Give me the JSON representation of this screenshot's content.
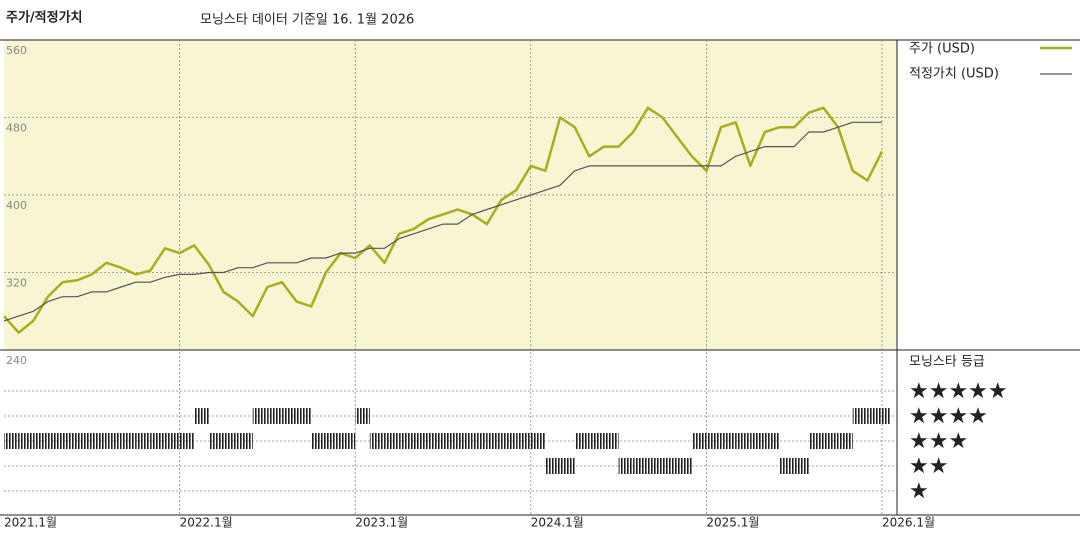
{
  "chart_data": {
    "type": "line",
    "title": "주가/적정가치",
    "subtitle": "모닝스타 데이터 기준일 16. 1월 2026",
    "x": [
      "2021-01",
      "2021-02",
      "2021-03",
      "2021-04",
      "2021-05",
      "2021-06",
      "2021-07",
      "2021-08",
      "2021-09",
      "2021-10",
      "2021-11",
      "2021-12",
      "2022-01",
      "2022-02",
      "2022-03",
      "2022-04",
      "2022-05",
      "2022-06",
      "2022-07",
      "2022-08",
      "2022-09",
      "2022-10",
      "2022-11",
      "2022-12",
      "2023-01",
      "2023-02",
      "2023-03",
      "2023-04",
      "2023-05",
      "2023-06",
      "2023-07",
      "2023-08",
      "2023-09",
      "2023-10",
      "2023-11",
      "2023-12",
      "2024-01",
      "2024-02",
      "2024-03",
      "2024-04",
      "2024-05",
      "2024-06",
      "2024-07",
      "2024-08",
      "2024-09",
      "2024-10",
      "2024-11",
      "2024-12",
      "2025-01",
      "2025-02",
      "2025-03",
      "2025-04",
      "2025-05",
      "2025-06",
      "2025-07",
      "2025-08",
      "2025-09",
      "2025-10",
      "2025-11",
      "2025-12",
      "2026-01"
    ],
    "series": [
      {
        "name": "주가 (USD)",
        "color": "#a8ad1f",
        "values": [
          275,
          258,
          270,
          295,
          310,
          312,
          318,
          330,
          325,
          318,
          322,
          345,
          340,
          348,
          328,
          300,
          290,
          275,
          305,
          310,
          290,
          285,
          320,
          340,
          335,
          348,
          330,
          360,
          365,
          375,
          380,
          385,
          380,
          370,
          395,
          405,
          430,
          425,
          480,
          470,
          440,
          450,
          450,
          465,
          490,
          480,
          460,
          440,
          425,
          470,
          475,
          430,
          465,
          470,
          470,
          485,
          490,
          470,
          425,
          415,
          445
        ]
      },
      {
        "name": "적정가치 (USD)",
        "color": "#555555",
        "values": [
          270,
          275,
          280,
          290,
          295,
          295,
          300,
          300,
          305,
          310,
          310,
          315,
          318,
          318,
          320,
          320,
          325,
          325,
          330,
          330,
          330,
          335,
          335,
          340,
          340,
          345,
          345,
          355,
          360,
          365,
          370,
          370,
          380,
          385,
          390,
          395,
          400,
          405,
          410,
          425,
          430,
          430,
          430,
          430,
          430,
          430,
          430,
          430,
          430,
          430,
          440,
          445,
          450,
          450,
          450,
          465,
          465,
          470,
          475,
          475,
          475
        ]
      }
    ],
    "ylim": [
      240,
      560
    ],
    "yticks": [
      240,
      320,
      400,
      480,
      560
    ],
    "xticks": [
      {
        "value": "2021-01",
        "label": "2021.1월"
      },
      {
        "value": "2022-01",
        "label": "2022.1월"
      },
      {
        "value": "2023-01",
        "label": "2023.1월"
      },
      {
        "value": "2024-01",
        "label": "2024.1월"
      },
      {
        "value": "2025-01",
        "label": "2025.1월"
      },
      {
        "value": "2026-01",
        "label": "2026.1월"
      }
    ],
    "grid": true,
    "background": "#f8f5d2",
    "rating": {
      "title": "모닝스타 등급",
      "levels": [
        {
          "value": 5,
          "label": "★★★★★"
        },
        {
          "value": 4,
          "label": "★★★★"
        },
        {
          "value": 3,
          "label": "★★★"
        },
        {
          "value": 2,
          "label": "★★"
        },
        {
          "value": 1,
          "label": "★"
        }
      ],
      "values": [
        3,
        3,
        3,
        3,
        3,
        3,
        3,
        3,
        3,
        3,
        3,
        3,
        3,
        4,
        3,
        3,
        3,
        4,
        4,
        4,
        4,
        3,
        3,
        3,
        4,
        3,
        3,
        3,
        3,
        3,
        3,
        3,
        3,
        3,
        3,
        3,
        3,
        2,
        2,
        3,
        3,
        3,
        2,
        2,
        2,
        2,
        2,
        3,
        3,
        3,
        3,
        3,
        3,
        2,
        2,
        3,
        3,
        3,
        4,
        4,
        4
      ]
    }
  }
}
